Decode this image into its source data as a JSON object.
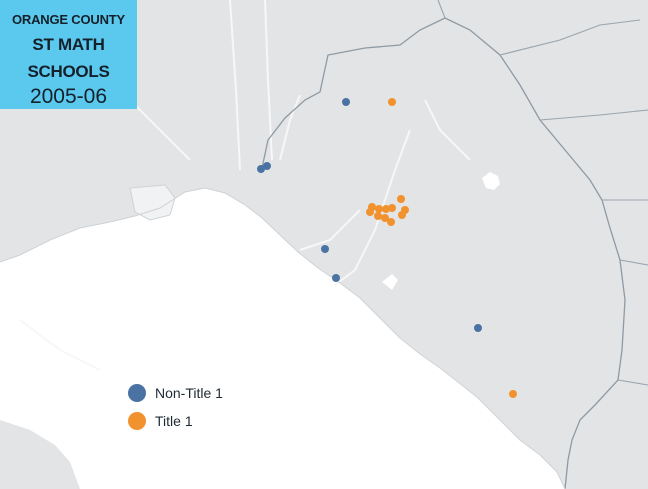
{
  "title": {
    "line1": "ORANGE COUNTY",
    "line2a": "ST MATH",
    "line2b": "SCHOOLS",
    "line3": "2005-06"
  },
  "legend": [
    {
      "label": "Non-Title 1",
      "color": "#4a73a3"
    },
    {
      "label": "Title 1",
      "color": "#f2922e"
    }
  ],
  "colors": {
    "land": "#e2e4e6",
    "ocean": "#ffffff",
    "boundary": "#8f9aa3",
    "road": "#f8f8f8",
    "title_bg": "#5bc8ee"
  },
  "markers_note_types": [
    "Non-Title 1",
    "Title 1"
  ]
}
